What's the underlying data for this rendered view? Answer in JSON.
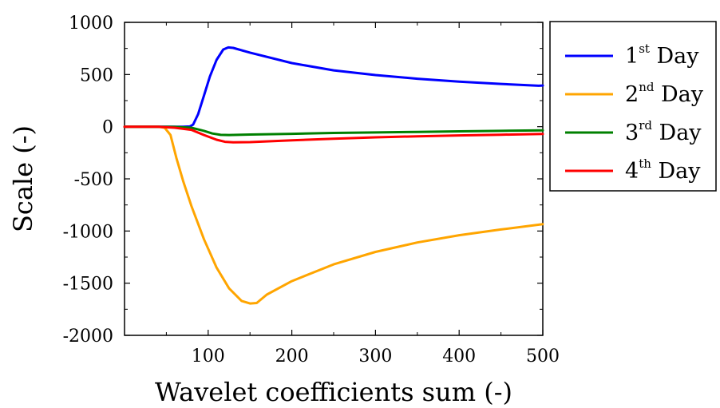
{
  "chart_data": {
    "type": "line",
    "xlabel": "Wavelet coefficients sum (-)",
    "ylabel": "Scale (-)",
    "xlim": [
      0,
      500
    ],
    "ylim": [
      -2000,
      1000
    ],
    "x_ticks": [
      "100",
      "200",
      "300",
      "400",
      "500"
    ],
    "y_ticks": [
      "1000",
      "500",
      "0",
      "-500",
      "-1000",
      "-1500",
      "-2000"
    ],
    "grid": false,
    "legend_position": "outside-right",
    "legend": [
      {
        "base": "1",
        "sup": "st",
        "suffix": " Day"
      },
      {
        "base": "2",
        "sup": "nd",
        "suffix": " Day"
      },
      {
        "base": "3",
        "sup": "rd",
        "suffix": " Day"
      },
      {
        "base": "4",
        "sup": "th",
        "suffix": " Day"
      }
    ],
    "series": [
      {
        "name": "1st Day",
        "color": "#0000ff",
        "points": [
          [
            0,
            0
          ],
          [
            20,
            0
          ],
          [
            40,
            0
          ],
          [
            60,
            0
          ],
          [
            70,
            0
          ],
          [
            78,
            2
          ],
          [
            82,
            20
          ],
          [
            88,
            120
          ],
          [
            95,
            300
          ],
          [
            102,
            480
          ],
          [
            110,
            640
          ],
          [
            118,
            740
          ],
          [
            124,
            760
          ],
          [
            130,
            755
          ],
          [
            150,
            710
          ],
          [
            200,
            610
          ],
          [
            250,
            540
          ],
          [
            300,
            495
          ],
          [
            350,
            460
          ],
          [
            400,
            432
          ],
          [
            450,
            410
          ],
          [
            495,
            392
          ],
          [
            500,
            395
          ]
        ]
      },
      {
        "name": "2nd Day",
        "color": "#ffa500",
        "points": [
          [
            0,
            0
          ],
          [
            20,
            0
          ],
          [
            40,
            0
          ],
          [
            48,
            -10
          ],
          [
            55,
            -80
          ],
          [
            62,
            -300
          ],
          [
            70,
            -520
          ],
          [
            80,
            -760
          ],
          [
            95,
            -1080
          ],
          [
            110,
            -1350
          ],
          [
            125,
            -1550
          ],
          [
            140,
            -1670
          ],
          [
            150,
            -1695
          ],
          [
            158,
            -1690
          ],
          [
            170,
            -1610
          ],
          [
            200,
            -1480
          ],
          [
            250,
            -1320
          ],
          [
            300,
            -1200
          ],
          [
            350,
            -1110
          ],
          [
            400,
            -1040
          ],
          [
            450,
            -985
          ],
          [
            500,
            -935
          ]
        ]
      },
      {
        "name": "3rd Day",
        "color": "#008000",
        "points": [
          [
            0,
            0
          ],
          [
            40,
            0
          ],
          [
            60,
            -2
          ],
          [
            80,
            -10
          ],
          [
            95,
            -40
          ],
          [
            105,
            -65
          ],
          [
            115,
            -78
          ],
          [
            125,
            -80
          ],
          [
            150,
            -75
          ],
          [
            200,
            -68
          ],
          [
            250,
            -60
          ],
          [
            300,
            -55
          ],
          [
            350,
            -50
          ],
          [
            400,
            -45
          ],
          [
            450,
            -40
          ],
          [
            500,
            -35
          ]
        ]
      },
      {
        "name": "4th Day",
        "color": "#ff0000",
        "points": [
          [
            0,
            0
          ],
          [
            40,
            0
          ],
          [
            60,
            -10
          ],
          [
            80,
            -30
          ],
          [
            95,
            -80
          ],
          [
            110,
            -125
          ],
          [
            120,
            -145
          ],
          [
            130,
            -150
          ],
          [
            150,
            -148
          ],
          [
            200,
            -130
          ],
          [
            250,
            -115
          ],
          [
            300,
            -102
          ],
          [
            350,
            -92
          ],
          [
            400,
            -84
          ],
          [
            450,
            -77
          ],
          [
            500,
            -70
          ]
        ]
      }
    ]
  }
}
